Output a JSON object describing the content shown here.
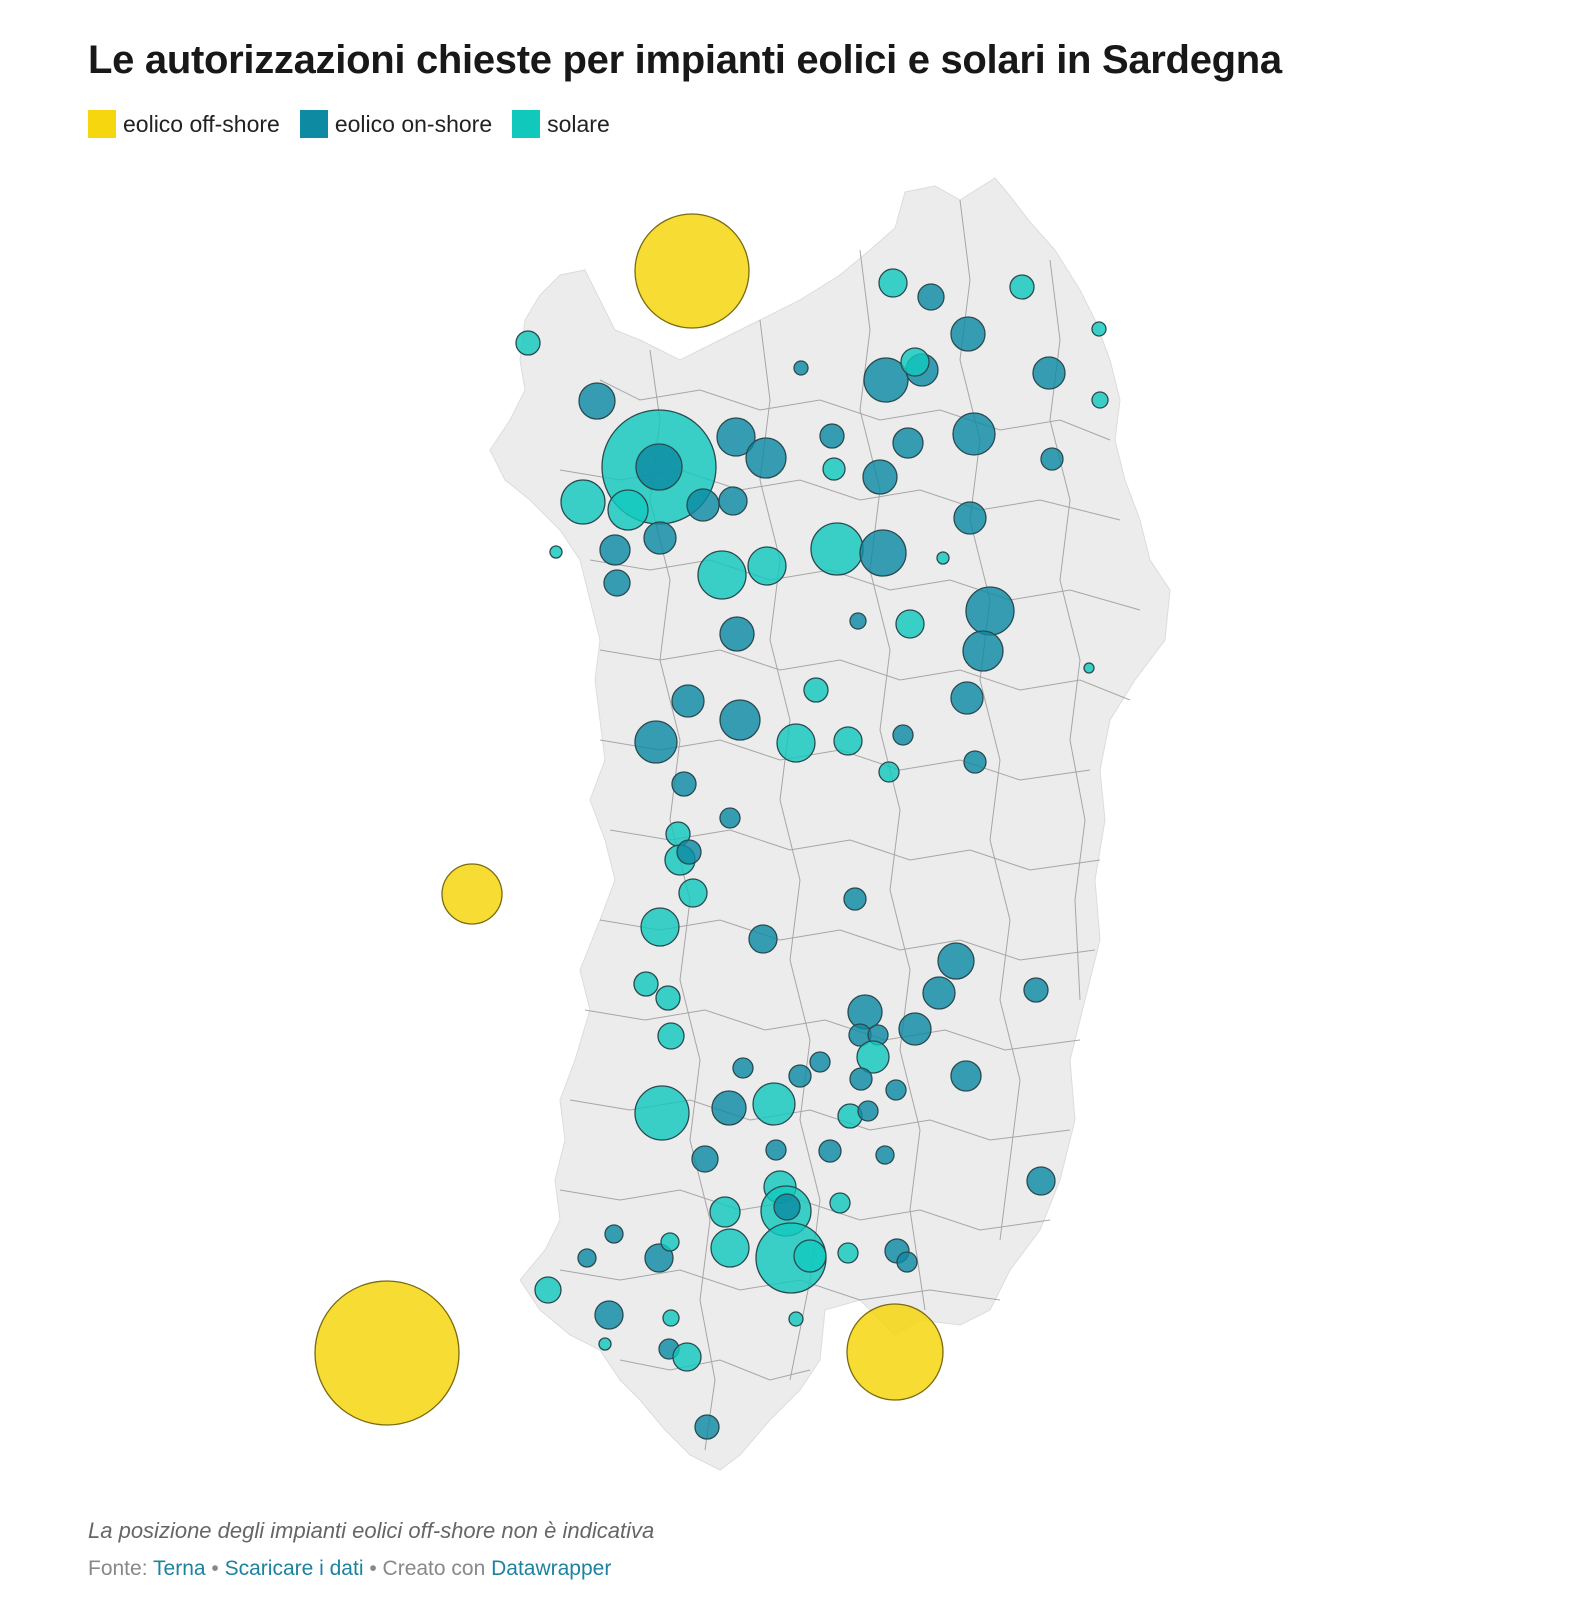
{
  "header": {
    "title": "Le autorizzazioni chieste per impianti eolici e solari in Sardegna"
  },
  "legend": [
    {
      "label": "eolico off-shore",
      "color": "#f5d60f"
    },
    {
      "label": "eolico on-shore",
      "color": "#0e8aa3"
    },
    {
      "label": "solare",
      "color": "#11c8bd"
    }
  ],
  "map": {
    "region": "Sardegna",
    "land_color": "#ececec",
    "border_color": "#8a8a8a",
    "bubble_categories": [
      "eolico off-shore",
      "eolico on-shore",
      "solare"
    ]
  },
  "notes": {
    "positioning": "La posizione degli impianti eolici off-shore non è indicativa"
  },
  "footer": {
    "source_prefix": "Fonte:",
    "source_link": "Terna",
    "separator1": "•",
    "download_link": "Scaricare i dati",
    "separator2": "•",
    "created_prefix": "Creato con",
    "tool_link": "Datawrapper"
  }
}
